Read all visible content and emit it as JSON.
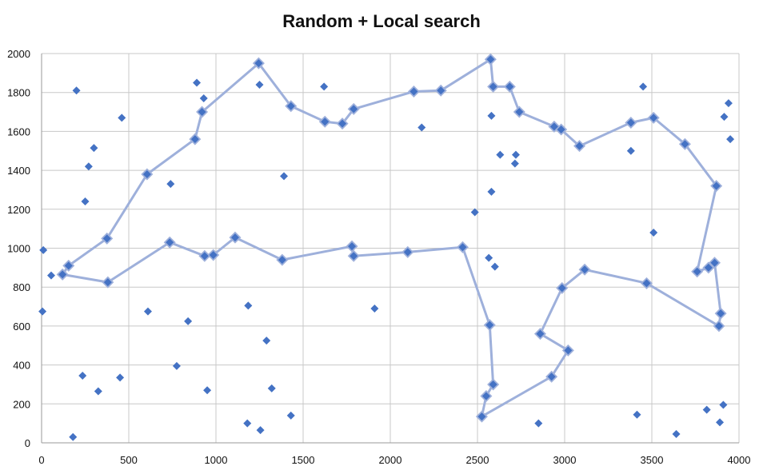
{
  "chart_data": {
    "type": "scatter",
    "title": "Random + Local search",
    "xlabel": "",
    "ylabel": "",
    "xlim": [
      0,
      4000
    ],
    "ylim": [
      0,
      2000
    ],
    "x_ticks": [
      0,
      500,
      1000,
      1500,
      2000,
      2500,
      3000,
      3500,
      4000
    ],
    "y_ticks": [
      0,
      200,
      400,
      600,
      800,
      1000,
      1200,
      1400,
      1600,
      1800,
      2000
    ],
    "grid": true,
    "colors": {
      "points": "#4472c4",
      "route": "#9eb0db"
    },
    "points": [
      [
        10,
        990
      ],
      [
        55,
        860
      ],
      [
        5,
        675
      ],
      [
        200,
        1810
      ],
      [
        460,
        1670
      ],
      [
        300,
        1515
      ],
      [
        270,
        1420
      ],
      [
        250,
        1240
      ],
      [
        890,
        1850
      ],
      [
        930,
        1770
      ],
      [
        1250,
        1840
      ],
      [
        1620,
        1830
      ],
      [
        2180,
        1620
      ],
      [
        1390,
        1370
      ],
      [
        740,
        1330
      ],
      [
        2580,
        1680
      ],
      [
        2630,
        1480
      ],
      [
        2720,
        1480
      ],
      [
        2715,
        1435
      ],
      [
        2580,
        1290
      ],
      [
        2485,
        1185
      ],
      [
        3450,
        1830
      ],
      [
        3380,
        1500
      ],
      [
        3940,
        1745
      ],
      [
        3915,
        1675
      ],
      [
        3950,
        1560
      ],
      [
        3510,
        1080
      ],
      [
        2565,
        950
      ],
      [
        2600,
        905
      ],
      [
        1185,
        705
      ],
      [
        1910,
        690
      ],
      [
        610,
        675
      ],
      [
        840,
        625
      ],
      [
        1290,
        525
      ],
      [
        775,
        395
      ],
      [
        235,
        345
      ],
      [
        450,
        335
      ],
      [
        325,
        265
      ],
      [
        950,
        270
      ],
      [
        1320,
        280
      ],
      [
        1430,
        140
      ],
      [
        1180,
        100
      ],
      [
        1255,
        65
      ],
      [
        180,
        30
      ],
      [
        2850,
        100
      ],
      [
        3415,
        145
      ],
      [
        3640,
        45
      ],
      [
        3815,
        170
      ],
      [
        3910,
        195
      ],
      [
        3890,
        105
      ]
    ],
    "route": [
      [
        120,
        865
      ],
      [
        380,
        825
      ],
      [
        735,
        1030
      ],
      [
        935,
        960
      ],
      [
        985,
        965
      ],
      [
        1110,
        1055
      ],
      [
        1380,
        940
      ],
      [
        1780,
        1010
      ],
      [
        1790,
        960
      ],
      [
        2100,
        980
      ],
      [
        2415,
        1005
      ],
      [
        2570,
        605
      ],
      [
        2590,
        300
      ],
      [
        2550,
        240
      ],
      [
        2525,
        135
      ],
      [
        2925,
        340
      ],
      [
        3020,
        475
      ],
      [
        2860,
        560
      ],
      [
        2985,
        795
      ],
      [
        3115,
        890
      ],
      [
        3470,
        820
      ],
      [
        3885,
        600
      ],
      [
        3895,
        665
      ],
      [
        3860,
        925
      ],
      [
        3825,
        900
      ],
      [
        3760,
        880
      ],
      [
        3870,
        1320
      ],
      [
        3690,
        1535
      ],
      [
        3510,
        1670
      ],
      [
        3380,
        1645
      ],
      [
        3085,
        1525
      ],
      [
        2980,
        1610
      ],
      [
        2940,
        1625
      ],
      [
        2740,
        1700
      ],
      [
        2685,
        1830
      ],
      [
        2590,
        1830
      ],
      [
        2575,
        1970
      ],
      [
        2290,
        1810
      ],
      [
        2135,
        1805
      ],
      [
        1790,
        1715
      ],
      [
        1725,
        1640
      ],
      [
        1625,
        1650
      ],
      [
        1430,
        1730
      ],
      [
        1245,
        1950
      ],
      [
        920,
        1700
      ],
      [
        880,
        1560
      ],
      [
        605,
        1380
      ],
      [
        375,
        1050
      ],
      [
        155,
        910
      ]
    ]
  }
}
